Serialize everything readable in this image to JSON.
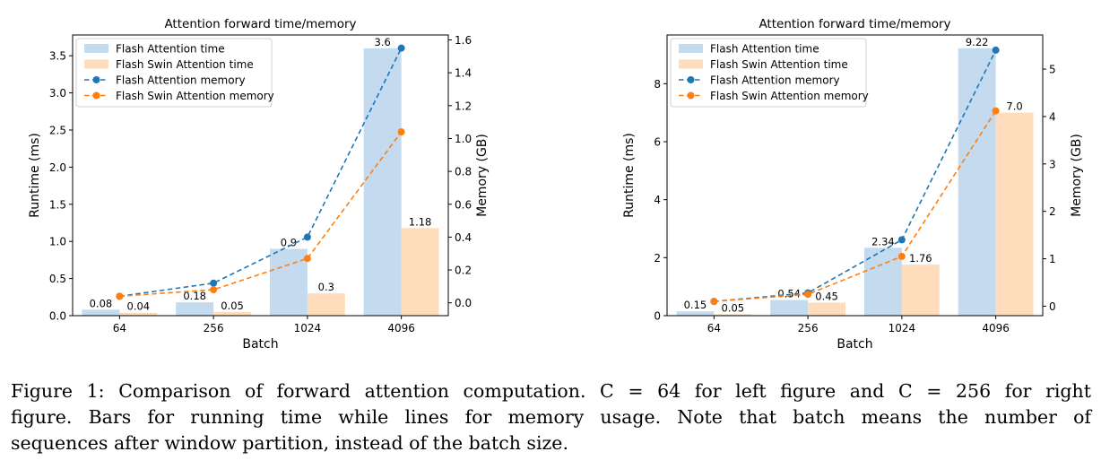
{
  "charts": [
    {
      "type": "bar+line",
      "title": "Attention forward time/memory",
      "xlabel": "Batch",
      "ylabel_left": "Runtime (ms)",
      "ylabel_right": "Memory (GB)",
      "categories": [
        "64",
        "256",
        "1024",
        "4096"
      ],
      "y_left_ticks": [
        "0.0",
        "0.5",
        "1.0",
        "1.5",
        "2.0",
        "2.5",
        "3.0",
        "3.5"
      ],
      "y_left_tick_values": [
        0,
        0.5,
        1.0,
        1.5,
        2.0,
        2.5,
        3.0,
        3.5
      ],
      "y_left_range": [
        0,
        3.78
      ],
      "y_right_ticks": [
        "0.0",
        "0.2",
        "0.4",
        "0.6",
        "0.8",
        "1.0",
        "1.2",
        "1.4",
        "1.6"
      ],
      "y_right_tick_values": [
        0,
        0.2,
        0.4,
        0.6,
        0.8,
        1.0,
        1.2,
        1.4,
        1.6
      ],
      "y_right_range": [
        -0.078,
        1.63
      ],
      "bar_series": [
        {
          "name": "Flash Attention time",
          "values": [
            0.08,
            0.18,
            0.9,
            3.6
          ],
          "labels": [
            "0.08",
            "0.18",
            "0.9",
            "3.6"
          ],
          "color": "#c4daee"
        },
        {
          "name": "Flash Swin Attention time",
          "values": [
            0.04,
            0.05,
            0.3,
            1.18
          ],
          "labels": [
            "0.04",
            "0.05",
            "0.3",
            "1.18"
          ],
          "color": "#ffdcbb"
        }
      ],
      "line_series": [
        {
          "name": "Flash Attention memory",
          "values": [
            0.04,
            0.12,
            0.4,
            1.55
          ],
          "color": "#1f77b4"
        },
        {
          "name": "Flash Swin Attention memory",
          "values": [
            0.04,
            0.08,
            0.27,
            1.04
          ],
          "color": "#ff7f0e"
        }
      ],
      "legend": "top-left"
    },
    {
      "type": "bar+line",
      "title": "Attention forward time/memory",
      "xlabel": "Batch",
      "ylabel_left": "Runtime (ms)",
      "ylabel_right": "Memory (GB)",
      "categories": [
        "64",
        "256",
        "1024",
        "4096"
      ],
      "y_left_ticks": [
        "0",
        "2",
        "4",
        "6",
        "8"
      ],
      "y_left_tick_values": [
        0,
        2,
        4,
        6,
        8
      ],
      "y_left_range": [
        0,
        9.68
      ],
      "y_right_ticks": [
        "0",
        "1",
        "2",
        "3",
        "4",
        "5"
      ],
      "y_right_tick_values": [
        0,
        1,
        2,
        3,
        4,
        5
      ],
      "y_right_range": [
        -0.2,
        5.72
      ],
      "bar_series": [
        {
          "name": "Flash Attention time",
          "values": [
            0.15,
            0.54,
            2.34,
            9.22
          ],
          "labels": [
            "0.15",
            "0.54",
            "2.34",
            "9.22"
          ],
          "color": "#c4daee"
        },
        {
          "name": "Flash Swin Attention time",
          "values": [
            0.05,
            0.45,
            1.76,
            7.0
          ],
          "labels": [
            "0.05",
            "0.45",
            "1.76",
            "7.0"
          ],
          "color": "#ffdcbb"
        }
      ],
      "line_series": [
        {
          "name": "Flash Attention memory",
          "values": [
            0.1,
            0.28,
            1.4,
            5.4
          ],
          "color": "#1f77b4"
        },
        {
          "name": "Flash Swin Attention memory",
          "values": [
            0.1,
            0.25,
            1.05,
            4.12
          ],
          "color": "#ff7f0e"
        }
      ],
      "legend": "top-left"
    }
  ],
  "caption": {
    "line1": "Figure 1: Comparison of forward attention computation. C = 64 for left figure and C = 256 for right",
    "line2": "figure. Bars for running time while lines for memory usage. Note that batch means the number of",
    "line3": "sequences after window partition, instead of the batch size."
  }
}
